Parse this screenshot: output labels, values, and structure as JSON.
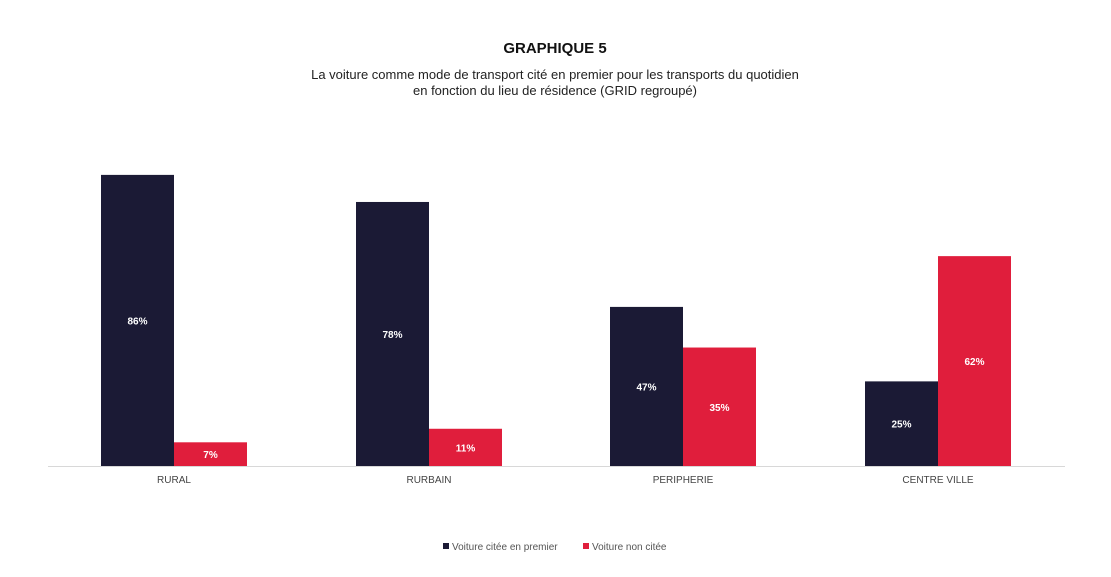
{
  "chart_data": {
    "type": "bar",
    "title": "GRAPHIQUE 5",
    "subtitle_lines": [
      "La voiture comme mode de transport  cité en premier pour les transports  du quotidien",
      "en fonction du lieu de résidence (GRID regroupé)"
    ],
    "categories": [
      "RURAL",
      "RURBAIN",
      "PERIPHERIE",
      "CENTRE VILLE"
    ],
    "series": [
      {
        "name": "Voiture citée en premier",
        "color": "#1b1a35",
        "values": [
          86,
          78,
          47,
          25
        ],
        "labels": [
          "86%",
          "78%",
          "47%",
          "25%"
        ]
      },
      {
        "name": "Voiture non citée",
        "color": "#e01e3c",
        "values": [
          7,
          11,
          35,
          62
        ],
        "labels": [
          "7%",
          "11%",
          "35%",
          "62%"
        ]
      }
    ],
    "ylim": [
      0,
      100
    ],
    "grid": false,
    "legend_position": "bottom"
  }
}
